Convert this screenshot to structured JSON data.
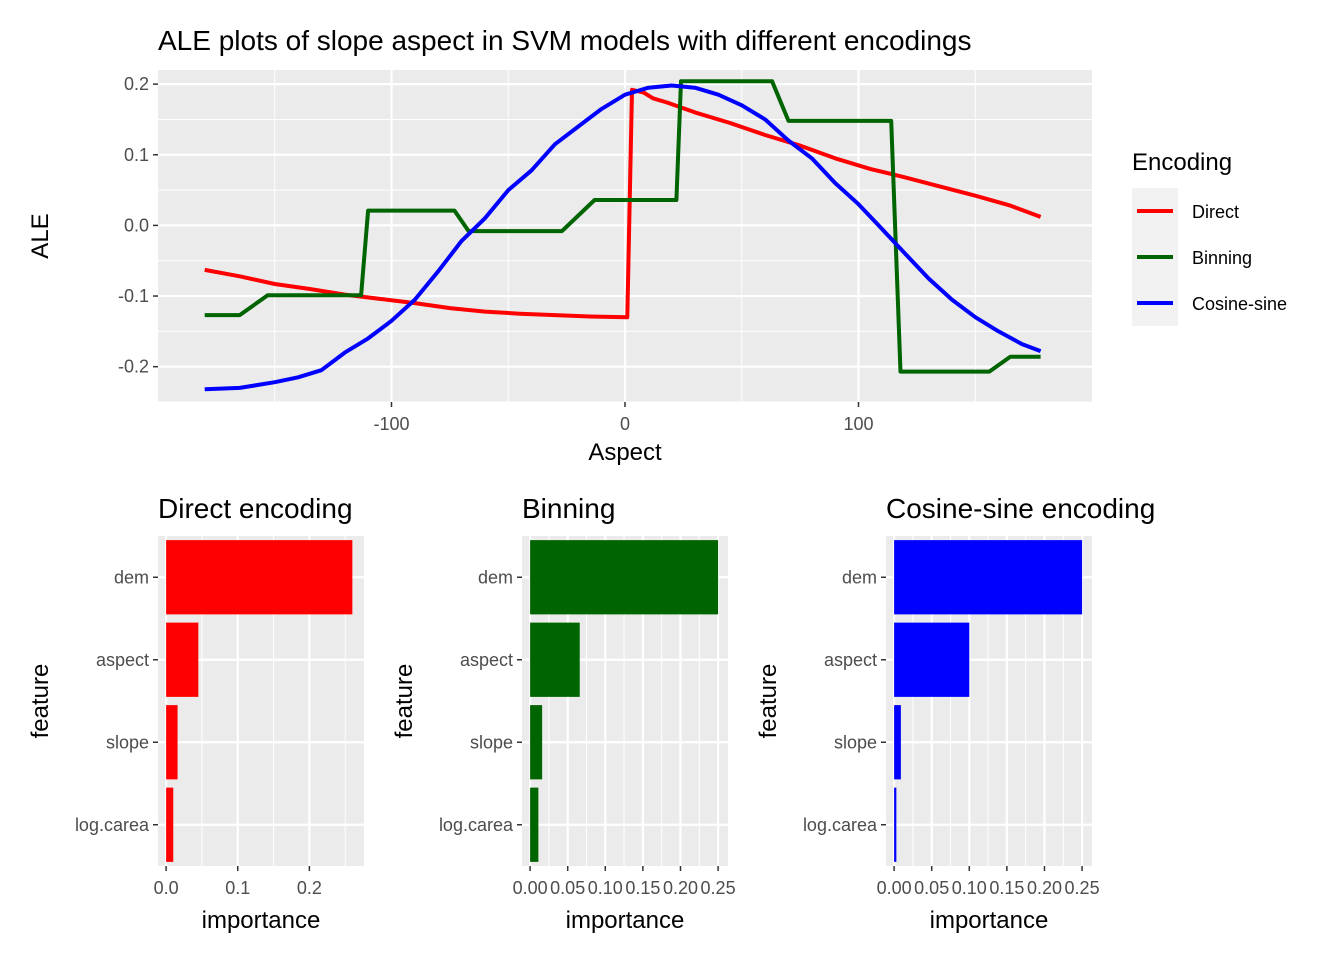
{
  "chart_data": [
    {
      "type": "line",
      "title": "ALE plots of slope aspect in SVM models with different encodings",
      "xlabel": "Aspect",
      "ylabel": "ALE",
      "xlim": [
        -200,
        200
      ],
      "ylim": [
        -0.25,
        0.22
      ],
      "xticks": [
        -100,
        0,
        100
      ],
      "yticks": [
        -0.2,
        -0.1,
        0.0,
        0.1,
        0.2
      ],
      "ytick_labels": [
        "-0.2",
        "-0.1",
        "0.0",
        "0.1",
        "0.2"
      ],
      "grid": true,
      "legend": {
        "title": "Encoding",
        "position": "right"
      },
      "series": [
        {
          "name": "Direct",
          "color": "#ff0000",
          "x": [
            -180,
            -165,
            -150,
            -135,
            -120,
            -105,
            -90,
            -75,
            -60,
            -45,
            -30,
            -15,
            1,
            3,
            8,
            12,
            18,
            30,
            45,
            60,
            75,
            90,
            105,
            120,
            135,
            150,
            165,
            178
          ],
          "y": [
            -0.063,
            -0.072,
            -0.083,
            -0.09,
            -0.098,
            -0.104,
            -0.11,
            -0.117,
            -0.122,
            -0.125,
            -0.127,
            -0.129,
            -0.13,
            0.192,
            0.188,
            0.18,
            0.174,
            0.16,
            0.145,
            0.128,
            0.113,
            0.095,
            0.08,
            0.068,
            0.055,
            0.042,
            0.028,
            0.012
          ]
        },
        {
          "name": "Binning",
          "color": "#006400",
          "x": [
            -180,
            -165,
            -153,
            -113,
            -110,
            -73,
            -67,
            -27,
            -13,
            22,
            24,
            63,
            70,
            114,
            118,
            156,
            165,
            178
          ],
          "y": [
            -0.127,
            -0.127,
            -0.099,
            -0.099,
            0.021,
            0.021,
            -0.008,
            -0.008,
            0.036,
            0.036,
            0.204,
            0.204,
            0.148,
            0.148,
            -0.207,
            -0.207,
            -0.186,
            -0.186
          ],
          "xtick_labels": [
            "0.00",
            "0.05",
            "0.10",
            "0.15",
            "0.20",
            "0.25"
          ]
        },
        {
          "name": "Cosine-sine",
          "color": "#0000ff",
          "x": [
            -180,
            -165,
            -150,
            -140,
            -130,
            -120,
            -110,
            -100,
            -90,
            -80,
            -70,
            -60,
            -50,
            -40,
            -30,
            -20,
            -10,
            0,
            10,
            20,
            30,
            40,
            50,
            60,
            70,
            80,
            90,
            100,
            110,
            120,
            130,
            140,
            150,
            160,
            170,
            178
          ],
          "y": [
            -0.232,
            -0.23,
            -0.222,
            -0.215,
            -0.205,
            -0.18,
            -0.16,
            -0.135,
            -0.105,
            -0.065,
            -0.022,
            0.01,
            0.05,
            0.078,
            0.115,
            0.14,
            0.165,
            0.185,
            0.195,
            0.198,
            0.195,
            0.185,
            0.17,
            0.15,
            0.12,
            0.095,
            0.06,
            0.03,
            -0.005,
            -0.04,
            -0.075,
            -0.105,
            -0.13,
            -0.15,
            -0.168,
            -0.178
          ]
        }
      ]
    },
    {
      "type": "bar",
      "orientation": "horizontal",
      "title": "Direct encoding",
      "xlabel": "importance",
      "ylabel": "feature",
      "color": "#ff0000",
      "categories": [
        "dem",
        "aspect",
        "slope",
        "log.carea"
      ],
      "values": [
        0.26,
        0.045,
        0.016,
        0.01
      ],
      "xlim": [
        0,
        0.275
      ],
      "xticks": [
        0.0,
        0.1,
        0.2
      ],
      "xtick_labels": [
        "0.0",
        "0.1",
        "0.2"
      ]
    },
    {
      "type": "bar",
      "orientation": "horizontal",
      "title": "Binning",
      "xlabel": "importance",
      "ylabel": "feature",
      "color": "#006400",
      "categories": [
        "dem",
        "aspect",
        "slope",
        "log.carea"
      ],
      "values": [
        0.25,
        0.066,
        0.016,
        0.011
      ],
      "xlim": [
        0,
        0.262
      ],
      "xticks": [
        0.0,
        0.05,
        0.1,
        0.15,
        0.2,
        0.25
      ],
      "xtick_labels": [
        "0.00",
        "0.05",
        "0.10",
        "0.15",
        "0.20",
        "0.25"
      ]
    },
    {
      "type": "bar",
      "orientation": "horizontal",
      "title": "Cosine-sine encoding",
      "xlabel": "importance",
      "ylabel": "feature",
      "color": "#0000ff",
      "categories": [
        "dem",
        "aspect",
        "slope",
        "log.carea"
      ],
      "values": [
        0.25,
        0.1,
        0.009,
        0.003
      ],
      "xlim": [
        0,
        0.262
      ],
      "xticks": [
        0.0,
        0.05,
        0.1,
        0.15,
        0.2,
        0.25
      ],
      "xtick_labels": [
        "0.00",
        "0.05",
        "0.10",
        "0.15",
        "0.20",
        "0.25"
      ]
    }
  ]
}
